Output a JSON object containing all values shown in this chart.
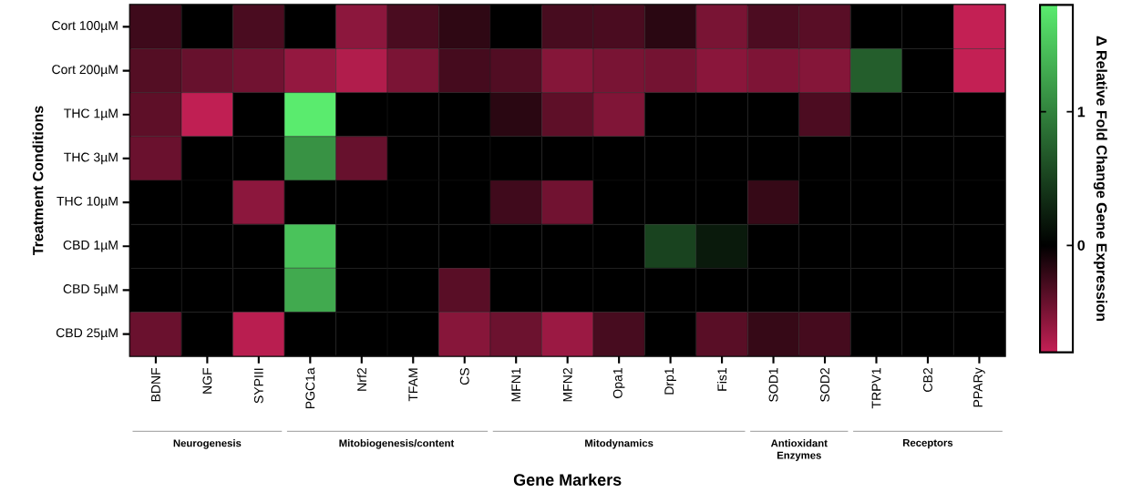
{
  "chart_data": {
    "type": "heatmap",
    "xlabel": "Gene Markers",
    "ylabel": "Treatment Conditions",
    "clabel": "Δ Relative Fold Change Gene Expression",
    "categories": [
      "BDNF",
      "NGF",
      "SYPIII",
      "PGC1a",
      "Nrf2",
      "TFAM",
      "CS",
      "MFN1",
      "MFN2",
      "Opa1",
      "Drp1",
      "Fis1",
      "SOD1",
      "SOD2",
      "TRPV1",
      "CB2",
      "PPARy"
    ],
    "y_categories": [
      "Cort 100µM",
      "Cort 200µM",
      "THC 1µM",
      "THC 3µM",
      "THC 10µM",
      "CBD 1µM",
      "CBD 5µM",
      "CBD 25µM"
    ],
    "cells": [
      [
        -0.25,
        0,
        -0.3,
        0,
        -0.57,
        -0.3,
        -0.19,
        0,
        -0.29,
        -0.3,
        -0.17,
        -0.49,
        -0.31,
        -0.36,
        0,
        0,
        -0.79
      ],
      [
        -0.34,
        -0.42,
        -0.46,
        -0.6,
        -0.72,
        -0.5,
        -0.28,
        -0.33,
        -0.54,
        -0.49,
        -0.47,
        -0.56,
        -0.51,
        -0.54,
        0.72,
        0,
        -0.79
      ],
      [
        -0.38,
        -0.78,
        0,
        1.8,
        0,
        0,
        0,
        -0.17,
        -0.38,
        -0.52,
        0,
        0,
        0,
        -0.31,
        0,
        0,
        0
      ],
      [
        -0.43,
        0,
        0,
        1.12,
        -0.42,
        0,
        0,
        0,
        0,
        0,
        0,
        0,
        0,
        0,
        0,
        0,
        0
      ],
      [
        0,
        0,
        -0.57,
        0,
        0,
        0,
        0,
        -0.26,
        -0.46,
        0,
        0,
        0,
        -0.22,
        0,
        0,
        0,
        0
      ],
      [
        0,
        0,
        0,
        1.49,
        0,
        0,
        0,
        0,
        0,
        0,
        0.51,
        0.2,
        0,
        0,
        0,
        0,
        0
      ],
      [
        0,
        0,
        0,
        1.3,
        0,
        0,
        -0.36,
        0,
        0,
        0,
        0,
        0,
        0,
        0,
        0,
        0,
        0
      ],
      [
        -0.43,
        0,
        -0.75,
        0,
        0,
        0,
        -0.55,
        -0.44,
        -0.63,
        -0.29,
        0,
        -0.36,
        -0.22,
        -0.28,
        0,
        0,
        0
      ]
    ],
    "clim": [
      -0.8,
      1.8
    ],
    "cticks": [
      0,
      1
    ],
    "annotations": [
      "Neurogenesis",
      "Mitobiogenesis/content",
      "Mitodynamics",
      "Antioxidant Enzymes",
      "Receptors"
    ]
  }
}
